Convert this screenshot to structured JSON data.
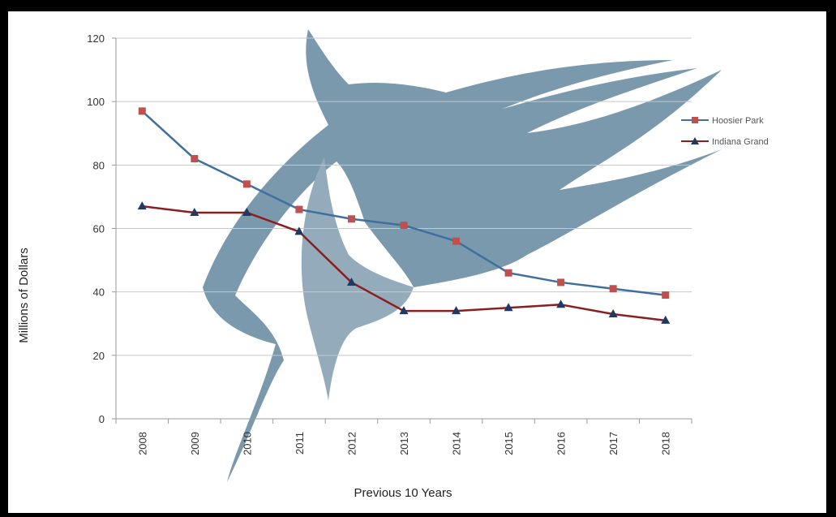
{
  "chart_data": {
    "type": "line",
    "xlabel": "Previous 10 Years",
    "ylabel": "Millions of Dollars",
    "ylim": [
      0,
      120
    ],
    "yticks": [
      0,
      20,
      40,
      60,
      80,
      100,
      120
    ],
    "categories": [
      "2008",
      "2009",
      "2010",
      "2011",
      "2012",
      "2013",
      "2014",
      "2015",
      "2016",
      "2017",
      "2018"
    ],
    "grid": "horizontal",
    "legend_position": "right",
    "series": [
      {
        "name": "Hoosier Park",
        "line_color": "#3f6f9f",
        "marker": "square",
        "marker_color": "#c0504d",
        "values": [
          97,
          82,
          74,
          66,
          63,
          61,
          56,
          46,
          43,
          41,
          39
        ]
      },
      {
        "name": "Indiana Grand",
        "line_color": "#8b1f1f",
        "marker": "triangle",
        "marker_color": "#1f3864",
        "values": [
          67,
          65,
          65,
          59,
          43,
          34,
          34,
          35,
          36,
          33,
          31
        ]
      }
    ]
  }
}
